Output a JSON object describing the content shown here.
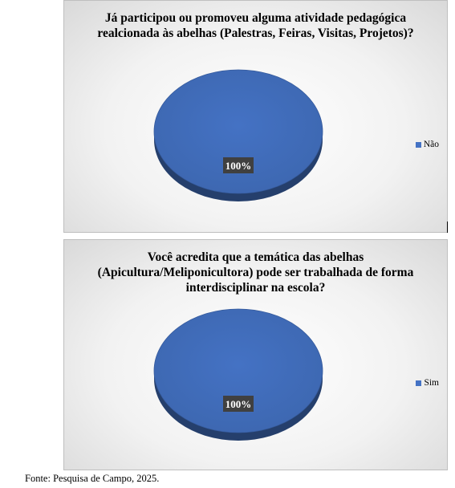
{
  "chart_data": [
    {
      "type": "pie",
      "title": "Já participou ou promoveu alguma atividade pedagógica realcionada às abelhas (Palestras, Feiras, Visitas, Projetos)?",
      "categories": [
        "Não"
      ],
      "values": [
        100
      ],
      "data_labels": [
        "100%"
      ],
      "colors": [
        "#4472c4"
      ],
      "legend_position": "right"
    },
    {
      "type": "pie",
      "title": "Você acredita que a temática das abelhas (Apicultura/Meliponicultora) pode ser trabalhada de forma interdisciplinar na escola?",
      "categories": [
        "Sim"
      ],
      "values": [
        100
      ],
      "data_labels": [
        "100%"
      ],
      "colors": [
        "#4472c4"
      ],
      "legend_position": "right"
    }
  ],
  "caption": "Fonte: Pesquisa de Campo, 2025."
}
